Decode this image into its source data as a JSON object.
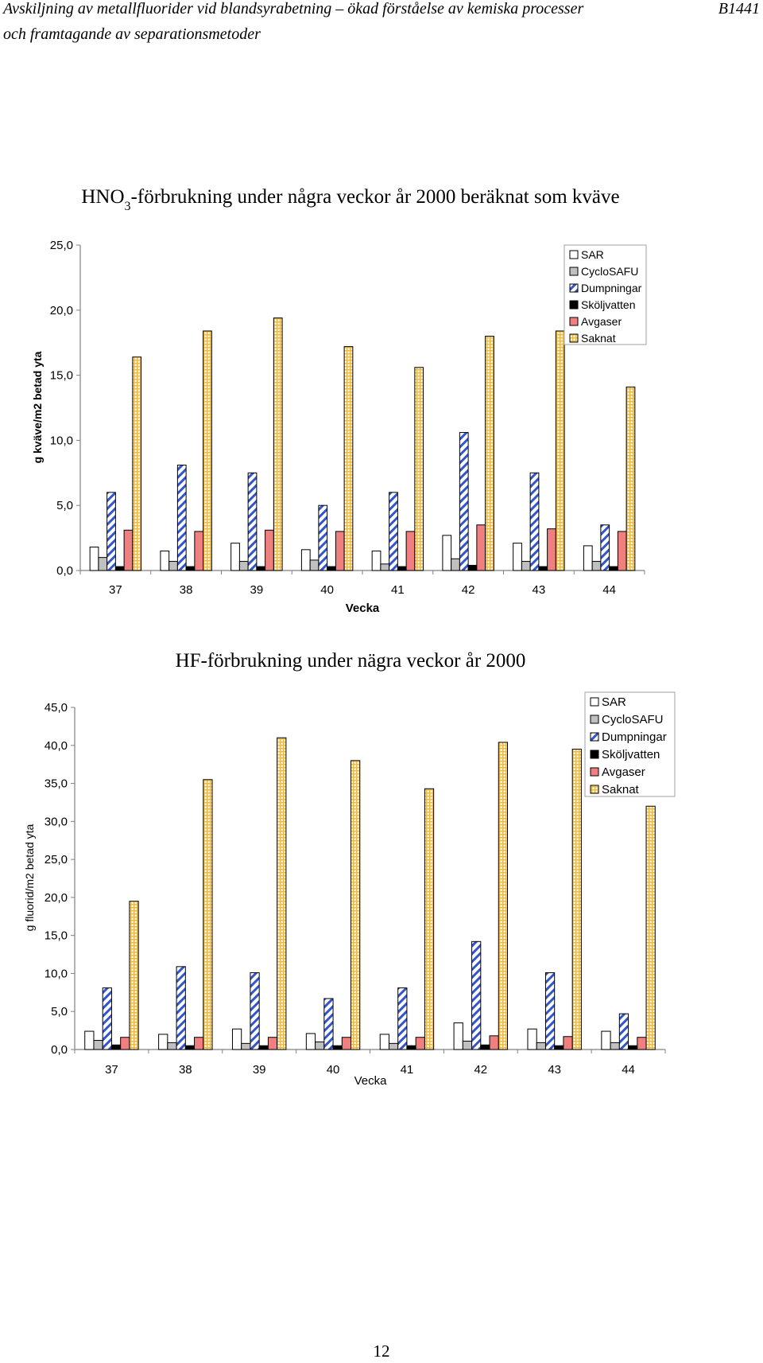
{
  "header": {
    "line1": "Avskiljning av metallfluorider vid blandsyrabetning – ökad förståelse av kemiska processer",
    "line2": "och framtagande av separationsmetoder",
    "code": "B1441"
  },
  "page_number": "12",
  "series_colors": {
    "SAR": "#ffffff",
    "CycloSAFU": "#c0c0c0",
    "Dumpningar": "#3355cc",
    "Sköljvatten": "#000000",
    "Avgaser": "#f08080",
    "Saknat": "#e8b84a"
  },
  "chart_data": [
    {
      "type": "bar",
      "title_parts": [
        "HNO",
        "3",
        "-förbrukning under några veckor år 2000 beräknat som kväve"
      ],
      "xlabel": "Vecka",
      "ylabel": "g kväve/m2 betad yta",
      "ylim": [
        0,
        25
      ],
      "y_ticks": [
        "0,0",
        "5,0",
        "10,0",
        "15,0",
        "20,0",
        "25,0"
      ],
      "legend_position": "top-right",
      "categories": [
        "37",
        "38",
        "39",
        "40",
        "41",
        "42",
        "43",
        "44"
      ],
      "series": [
        {
          "name": "SAR",
          "values": [
            1.8,
            1.5,
            2.1,
            1.6,
            1.5,
            2.7,
            2.1,
            1.9
          ]
        },
        {
          "name": "CycloSAFU",
          "values": [
            1.0,
            0.7,
            0.7,
            0.8,
            0.5,
            0.9,
            0.7,
            0.7
          ]
        },
        {
          "name": "Dumpningar",
          "values": [
            6.0,
            8.1,
            7.5,
            5.0,
            6.0,
            10.6,
            7.5,
            3.5
          ]
        },
        {
          "name": "Sköljvatten",
          "values": [
            0.3,
            0.3,
            0.3,
            0.3,
            0.3,
            0.4,
            0.3,
            0.3
          ]
        },
        {
          "name": "Avgaser",
          "values": [
            3.1,
            3.0,
            3.1,
            3.0,
            3.0,
            3.5,
            3.2,
            3.0
          ]
        },
        {
          "name": "Saknat",
          "values": [
            16.4,
            18.4,
            19.4,
            17.2,
            15.6,
            18.0,
            18.4,
            14.1
          ]
        }
      ]
    },
    {
      "type": "bar",
      "title_parts": [
        "HF-förbrukning under nägra veckor år 2000"
      ],
      "xlabel": "Vecka",
      "ylabel": "g fluorid/m2 betad yta",
      "ylim": [
        0,
        45
      ],
      "y_ticks": [
        "0,0",
        "5,0",
        "10,0",
        "15,0",
        "20,0",
        "25,0",
        "30,0",
        "35,0",
        "40,0",
        "45,0"
      ],
      "legend_position": "top-right",
      "categories": [
        "37",
        "38",
        "39",
        "40",
        "41",
        "42",
        "43",
        "44"
      ],
      "series": [
        {
          "name": "SAR",
          "values": [
            2.4,
            2.0,
            2.7,
            2.1,
            2.0,
            3.5,
            2.7,
            2.4
          ]
        },
        {
          "name": "CycloSAFU",
          "values": [
            1.2,
            0.9,
            0.8,
            1.0,
            0.8,
            1.1,
            0.9,
            0.9
          ]
        },
        {
          "name": "Dumpningar",
          "values": [
            8.1,
            10.9,
            10.1,
            6.7,
            8.1,
            14.2,
            10.1,
            4.7
          ]
        },
        {
          "name": "Sköljvatten",
          "values": [
            0.6,
            0.5,
            0.5,
            0.5,
            0.5,
            0.6,
            0.5,
            0.5
          ]
        },
        {
          "name": "Avgaser",
          "values": [
            1.6,
            1.6,
            1.6,
            1.6,
            1.6,
            1.8,
            1.7,
            1.6
          ]
        },
        {
          "name": "Saknat",
          "values": [
            19.5,
            35.5,
            41.0,
            38.0,
            34.3,
            40.4,
            39.5,
            32.0
          ]
        }
      ]
    }
  ]
}
